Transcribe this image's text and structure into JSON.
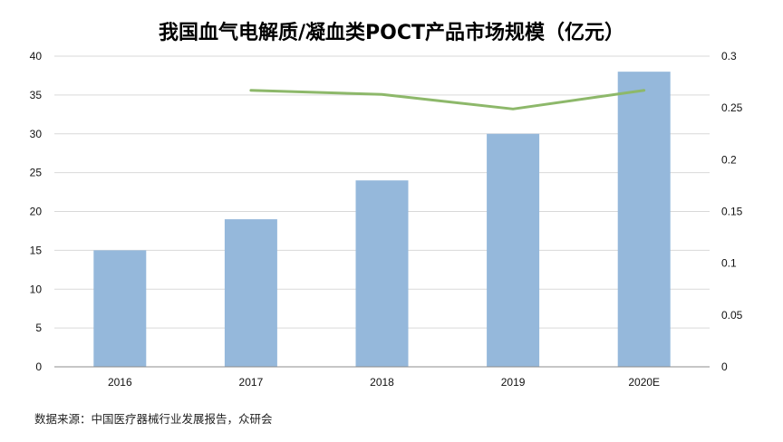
{
  "chart_data": {
    "type": "bar",
    "title": "我国血气电解质/凝血类POCT产品市场规模（亿元）",
    "categories": [
      "2016",
      "2017",
      "2018",
      "2019",
      "2020E"
    ],
    "series": [
      {
        "type": "bar",
        "axis": "left",
        "values": [
          15,
          19,
          24,
          30,
          38
        ],
        "color": "#95B8DB"
      },
      {
        "type": "line",
        "axis": "right",
        "values": [
          null,
          0.267,
          0.263,
          0.249,
          0.267
        ],
        "color": "#8DB86A"
      }
    ],
    "y_left": {
      "min": 0,
      "max": 40,
      "ticks": [
        "0",
        "5",
        "10",
        "15",
        "20",
        "25",
        "30",
        "35",
        "40"
      ]
    },
    "y_right": {
      "min": 0,
      "max": 0.3,
      "ticks": [
        "0",
        "0.05",
        "0.1",
        "0.15",
        "0.2",
        "0.25",
        "0.3"
      ]
    },
    "grid": true,
    "legend": "none"
  },
  "source": "数据来源：中国医疗器械行业发展报告，众研会",
  "colors": {
    "gridline": "#D9D9D9",
    "axis": "#8C8C8C"
  }
}
